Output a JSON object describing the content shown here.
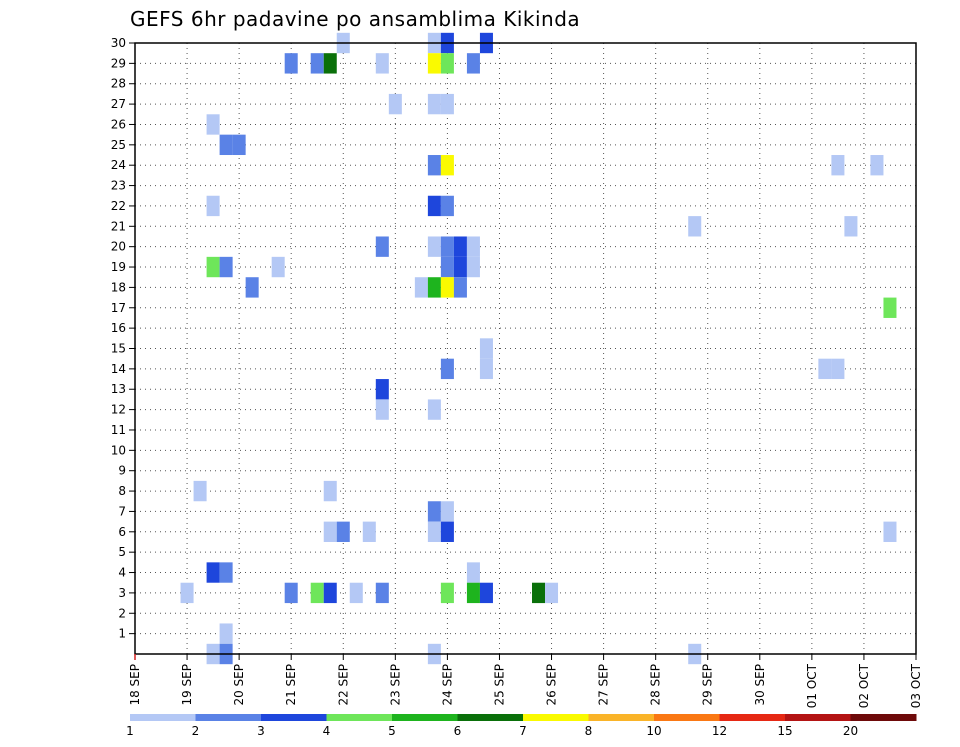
{
  "chart_data": {
    "type": "heatmap",
    "title": "GEFS 6hr padavine po ansamblima Kikinda",
    "y_ticks": [
      "1",
      "2",
      "3",
      "4",
      "5",
      "6",
      "7",
      "8",
      "9",
      "10",
      "11",
      "12",
      "13",
      "14",
      "15",
      "16",
      "17",
      "18",
      "19",
      "20",
      "21",
      "22",
      "23",
      "24",
      "25",
      "26",
      "27",
      "28",
      "29",
      "30"
    ],
    "x_ticks": [
      "18 SEP",
      "19 SEP",
      "20 SEP",
      "21 SEP",
      "22 SEP",
      "23 SEP",
      "24 SEP",
      "25 SEP",
      "26 SEP",
      "27 SEP",
      "28 SEP",
      "29 SEP",
      "30 SEP",
      "01 OCT",
      "02 OCT",
      "03 OCT"
    ],
    "colorbar": {
      "ticks": [
        "1",
        "2",
        "3",
        "4",
        "5",
        "6",
        "7",
        "8",
        "10",
        "12",
        "15",
        "20"
      ],
      "colors": [
        "#b4c8f5",
        "#5a82e6",
        "#1e46dc",
        "#6ee65a",
        "#1eb41e",
        "#0a700a",
        "#fafa00",
        "#fab428",
        "#fa7814",
        "#e62814",
        "#b41414",
        "#6e0a0a"
      ]
    },
    "x_range": [
      0,
      60
    ],
    "y_range": [
      0,
      30
    ],
    "grid": true,
    "cells": [
      [
        16,
        30,
        1
      ],
      [
        23,
        30,
        1
      ],
      [
        24,
        30,
        3
      ],
      [
        27,
        30,
        3
      ],
      [
        12,
        29,
        2
      ],
      [
        14,
        29,
        2
      ],
      [
        15,
        29,
        6
      ],
      [
        19,
        29,
        1
      ],
      [
        23,
        29,
        7
      ],
      [
        24,
        29,
        4
      ],
      [
        26,
        29,
        2
      ],
      [
        20,
        27,
        1
      ],
      [
        23,
        27,
        1
      ],
      [
        24,
        27,
        1
      ],
      [
        6,
        26,
        1
      ],
      [
        7,
        25,
        2
      ],
      [
        8,
        25,
        2
      ],
      [
        23,
        24,
        2
      ],
      [
        24,
        24,
        7
      ],
      [
        54,
        24,
        1
      ],
      [
        57,
        24,
        1
      ],
      [
        6,
        22,
        1
      ],
      [
        23,
        22,
        3
      ],
      [
        24,
        22,
        2
      ],
      [
        43,
        21,
        1
      ],
      [
        55,
        21,
        1
      ],
      [
        19,
        20,
        2
      ],
      [
        23,
        20,
        1
      ],
      [
        24,
        20,
        2
      ],
      [
        25,
        20,
        3
      ],
      [
        26,
        20,
        1
      ],
      [
        6,
        19,
        4
      ],
      [
        7,
        19,
        2
      ],
      [
        11,
        19,
        1
      ],
      [
        24,
        19,
        2
      ],
      [
        25,
        19,
        3
      ],
      [
        26,
        19,
        1
      ],
      [
        9,
        18,
        2
      ],
      [
        22,
        18,
        1
      ],
      [
        23,
        18,
        5
      ],
      [
        24,
        18,
        7
      ],
      [
        25,
        18,
        2
      ],
      [
        58,
        17,
        4
      ],
      [
        27,
        15,
        1
      ],
      [
        24,
        14,
        2
      ],
      [
        27,
        14,
        1
      ],
      [
        53,
        14,
        1
      ],
      [
        54,
        14,
        1
      ],
      [
        19,
        13,
        3
      ],
      [
        19,
        12,
        1
      ],
      [
        23,
        12,
        1
      ],
      [
        5,
        8,
        1
      ],
      [
        15,
        8,
        1
      ],
      [
        23,
        7,
        2
      ],
      [
        24,
        7,
        1
      ],
      [
        15,
        6,
        1
      ],
      [
        16,
        6,
        2
      ],
      [
        18,
        6,
        1
      ],
      [
        23,
        6,
        1
      ],
      [
        24,
        6,
        3
      ],
      [
        58,
        6,
        1
      ],
      [
        6,
        4,
        3
      ],
      [
        7,
        4,
        2
      ],
      [
        26,
        4,
        1
      ],
      [
        4,
        3,
        1
      ],
      [
        12,
        3,
        2
      ],
      [
        14,
        3,
        4
      ],
      [
        15,
        3,
        3
      ],
      [
        17,
        3,
        1
      ],
      [
        19,
        3,
        2
      ],
      [
        24,
        3,
        4
      ],
      [
        26,
        3,
        5
      ],
      [
        27,
        3,
        3
      ],
      [
        31,
        3,
        6
      ],
      [
        32,
        3,
        1
      ],
      [
        7,
        1,
        1
      ],
      [
        6,
        0,
        1
      ],
      [
        7,
        0,
        2
      ],
      [
        23,
        0,
        1
      ],
      [
        43,
        0,
        1
      ]
    ]
  }
}
